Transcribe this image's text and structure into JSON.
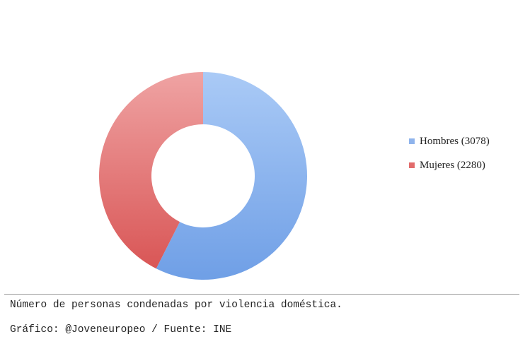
{
  "chart_data": {
    "type": "pie",
    "variant": "donut",
    "categories": [
      "Hombres",
      "Mujeres"
    ],
    "values": [
      3078,
      2280
    ],
    "colors": [
      "#8fb4ec",
      "#e26c6c"
    ],
    "legend_labels": [
      "Hombres (3078)",
      "Mujeres (2280)"
    ],
    "legend_position": "right"
  },
  "caption": {
    "line1": "Número de personas condenadas por violencia doméstica.",
    "line2": "Gráfico: @Joveneuropeo / Fuente: INE"
  }
}
